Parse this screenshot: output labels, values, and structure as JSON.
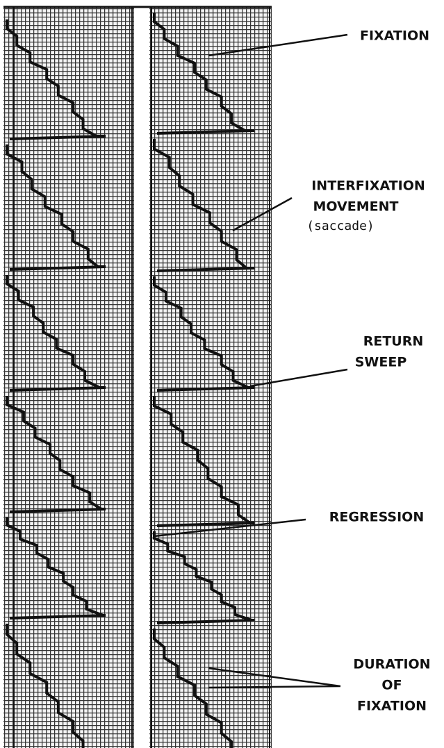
{
  "labels": [
    {
      "lines": [
        "FIXATION"
      ]
    },
    {
      "lines": [
        "INTERFIXATION",
        "MOVEMENT",
        "(saccade)"
      ]
    },
    {
      "lines": [
        "RETURN",
        "SWEEP"
      ]
    },
    {
      "lines": [
        "REGRESSION"
      ]
    },
    {
      "lines": [
        "DURATION",
        "OF",
        "FIXATION"
      ]
    }
  ]
}
